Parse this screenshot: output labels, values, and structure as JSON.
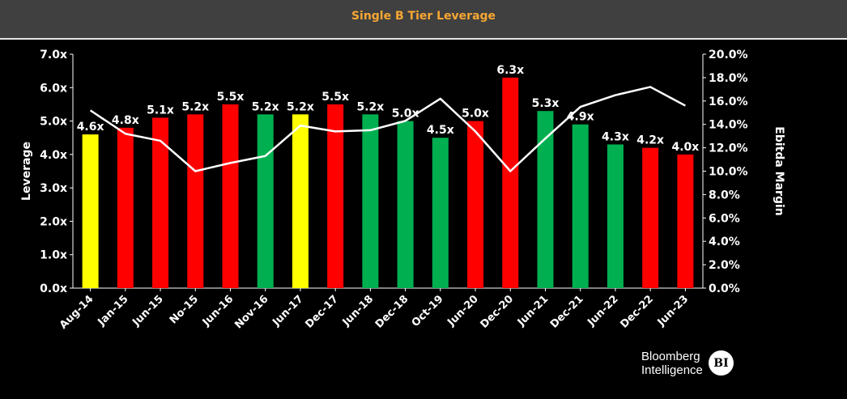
{
  "title": "Single B Tier Leverage",
  "chart_data": {
    "type": "bar",
    "categories": [
      "Aug-14",
      "Jan-15",
      "Jun-15",
      "No-15",
      "Jun-16",
      "Nov-16",
      "Jun-17",
      "Dec-17",
      "Jun-18",
      "Dec-18",
      "Oct-19",
      "Jun-20",
      "Dec-20",
      "Jun-21",
      "Dec-21",
      "Jun-22",
      "Dec-22",
      "Jun-23"
    ],
    "series": [
      {
        "axis": "left",
        "values": [
          4.6,
          4.8,
          5.1,
          5.2,
          5.5,
          5.2,
          5.2,
          5.5,
          5.2,
          5.0,
          4.5,
          5.0,
          6.3,
          5.3,
          4.9,
          4.3,
          4.2,
          4.0
        ],
        "data_labels": [
          "4.6x",
          "4.8x",
          "5.1x",
          "5.2x",
          "5.5x",
          "5.2x",
          "5.2x",
          "5.5x",
          "5.2x",
          "5.0x",
          "4.5x",
          "5.0x",
          "6.3x",
          "5.3x",
          "4.9x",
          "4.3x",
          "4.2x",
          "4.0x"
        ],
        "bar_colors": [
          "yellow",
          "red",
          "red",
          "red",
          "red",
          "green",
          "yellow",
          "red",
          "green",
          "green",
          "green",
          "red",
          "red",
          "green",
          "green",
          "green",
          "red",
          "red"
        ]
      },
      {
        "type": "line",
        "axis": "right",
        "values": [
          15.2,
          13.2,
          12.6,
          10.0,
          10.7,
          11.3,
          13.9,
          13.4,
          13.5,
          14.3,
          16.2,
          13.4,
          10.0,
          12.8,
          15.5,
          16.5,
          17.2,
          15.6
        ],
        "color": "#ffffff"
      }
    ],
    "ylabel": "Leverage",
    "ylabel_right": "Ebitda Margin",
    "ylim": [
      0,
      7
    ],
    "ylim_right": [
      0,
      20
    ],
    "yticks": [
      "0.0x",
      "1.0x",
      "2.0x",
      "3.0x",
      "4.0x",
      "5.0x",
      "6.0x",
      "7.0x"
    ],
    "yticks_right": [
      "0.0%",
      "2.0%",
      "4.0%",
      "6.0%",
      "8.0%",
      "10.0%",
      "12.0%",
      "14.0%",
      "16.0%",
      "18.0%",
      "20.0%"
    ],
    "grid": false,
    "colors": {
      "yellow": "#ffff00",
      "red": "#ff0000",
      "green": "#00b050",
      "line": "#ffffff",
      "axis": "#ffffff",
      "text": "#ffffff"
    }
  },
  "brand": {
    "line1": "Bloomberg",
    "line2": "Intelligence",
    "badge": "BI"
  }
}
